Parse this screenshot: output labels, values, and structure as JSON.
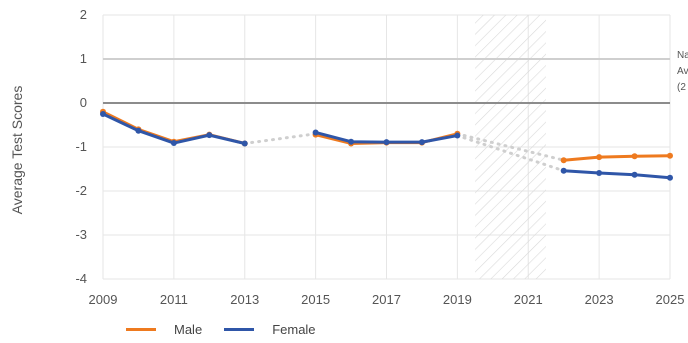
{
  "chart_data": {
    "type": "line",
    "title": "",
    "xlabel": "",
    "ylabel": "Average Test Scores",
    "xlim": [
      2009,
      2025
    ],
    "ylim": [
      -4,
      2
    ],
    "x_ticks": [
      "2009",
      "2011",
      "2013",
      "2015",
      "2017",
      "2019",
      "2021",
      "2023",
      "2025"
    ],
    "y_ticks": [
      "2",
      "1",
      "0",
      "-1",
      "-2",
      "-3",
      "-4"
    ],
    "shaded_region": [
      2019.5,
      2021.5
    ],
    "reference_lines": [
      {
        "y": 0,
        "color": "#8c8c8c"
      },
      {
        "y": 1,
        "color": "#cfcfcf"
      }
    ],
    "note": [
      "Na",
      "Av",
      "(2"
    ],
    "grid": true,
    "legend_position": "bottom-left",
    "series": [
      {
        "name": "Male",
        "color": "#ee7a1f",
        "segments": [
          {
            "x": [
              2009,
              2010,
              2011,
              2012,
              2013
            ],
            "y": [
              -0.2,
              -0.6,
              -0.88,
              -0.72,
              -0.92
            ]
          },
          {
            "x": [
              2015,
              2016,
              2017,
              2018,
              2019
            ],
            "y": [
              -0.72,
              -0.92,
              -0.9,
              -0.9,
              -0.7
            ]
          },
          {
            "x": [
              2022,
              2023,
              2024,
              2025
            ],
            "y": [
              -1.3,
              -1.23,
              -1.21,
              -1.2
            ]
          }
        ]
      },
      {
        "name": "Female",
        "color": "#2f56a8",
        "segments": [
          {
            "x": [
              2009,
              2010,
              2011,
              2012,
              2013
            ],
            "y": [
              -0.25,
              -0.63,
              -0.91,
              -0.73,
              -0.92
            ]
          },
          {
            "x": [
              2015,
              2016,
              2017,
              2018,
              2019
            ],
            "y": [
              -0.67,
              -0.88,
              -0.89,
              -0.89,
              -0.74
            ]
          },
          {
            "x": [
              2022,
              2023,
              2024,
              2025
            ],
            "y": [
              -1.54,
              -1.59,
              -1.63,
              -1.7
            ]
          }
        ]
      }
    ],
    "gaps": [
      {
        "from": [
          2013,
          -0.92
        ],
        "to": [
          2015,
          -0.7
        ],
        "color": "#cfcfcf"
      },
      {
        "from": [
          2019,
          -0.7
        ],
        "to": [
          2022,
          -1.3
        ],
        "color": "#cfcfcf"
      },
      {
        "from": [
          2019,
          -0.74
        ],
        "to": [
          2022,
          -1.54
        ],
        "color": "#cfcfcf"
      }
    ]
  }
}
